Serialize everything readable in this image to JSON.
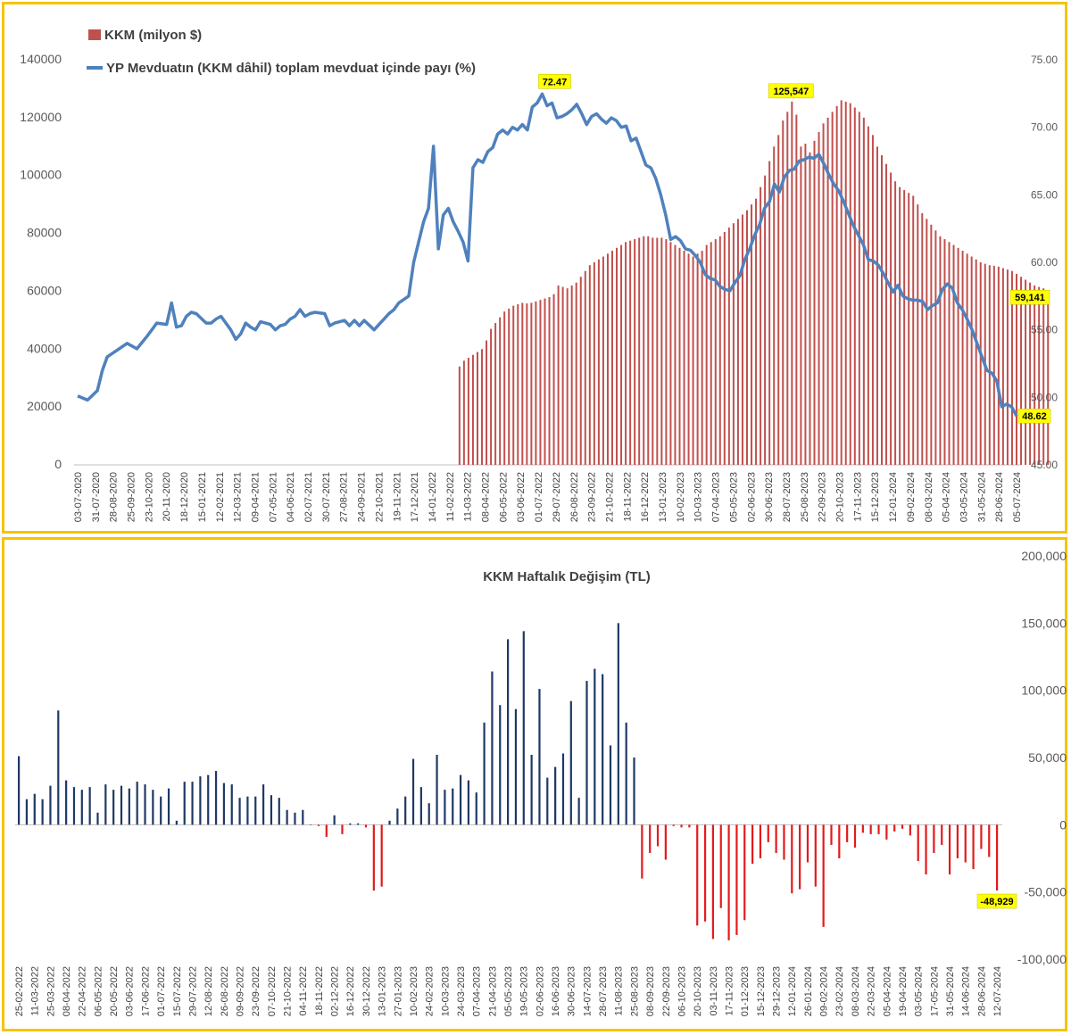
{
  "colors": {
    "frame": "#f5c400",
    "bar": "#c0504d",
    "line": "#4f81bd",
    "pos_bar": "#1f3864",
    "neg_bar": "#e31a1c",
    "callout": "#ffff00",
    "axis_text": "#595959"
  },
  "chart_data": [
    {
      "type": "bar+line",
      "title": "",
      "legend": {
        "placement": "top-left",
        "entries": [
          "KKM (milyon $)",
          "YP Mevduatın (KKM dâhil) toplam mevduat içinde payı (%)"
        ]
      },
      "y_left": {
        "ticks": [
          "0",
          "20000",
          "40000",
          "60000",
          "80000",
          "100000",
          "120000",
          "140000"
        ],
        "range": [
          0,
          140000
        ]
      },
      "y_right": {
        "ticks": [
          "45.00",
          "50.00",
          "55.00",
          "60.00",
          "65.00",
          "70.00",
          "75.00"
        ],
        "range": [
          45,
          75
        ]
      },
      "x_ticks": [
        "03-07-2020",
        "31-07-2020",
        "28-08-2020",
        "25-09-2020",
        "23-10-2020",
        "20-11-2020",
        "18-12-2020",
        "15-01-2021",
        "12-02-2021",
        "12-03-2021",
        "09-04-2021",
        "07-05-2021",
        "04-06-2021",
        "02-07-2021",
        "30-07-2021",
        "27-08-2021",
        "24-09-2021",
        "22-10-2021",
        "19-11-2021",
        "17-12-2021",
        "14-01-2022",
        "11-02-2022",
        "11-03-2022",
        "08-04-2022",
        "06-05-2022",
        "03-06-2022",
        "01-07-2022",
        "29-07-2022",
        "26-08-2022",
        "23-09-2022",
        "21-10-2022",
        "18-11-2022",
        "16-12-2022",
        "13-01-2023",
        "10-02-2023",
        "10-03-2023",
        "07-04-2023",
        "05-05-2023",
        "02-06-2023",
        "30-06-2023",
        "28-07-2023",
        "25-08-2023",
        "22-09-2023",
        "20-10-2023",
        "17-11-2023",
        "15-12-2023",
        "12-01-2024",
        "09-02-2024",
        "08-03-2024",
        "05-04-2024",
        "03-05-2024",
        "31-05-2024",
        "28-06-2024",
        "05-07-2024"
      ],
      "weeks_total": 210,
      "kkm_start_week": 85,
      "kkm_weekly_usd_mn": [
        34000,
        36000,
        37000,
        38000,
        39000,
        40000,
        43000,
        47000,
        49000,
        51000,
        53000,
        54000,
        55000,
        55500,
        56000,
        55800,
        56000,
        56500,
        57000,
        57500,
        58000,
        59000,
        62000,
        61500,
        61000,
        62000,
        63000,
        65000,
        67000,
        69000,
        70000,
        71000,
        72000,
        73000,
        74000,
        75000,
        76000,
        77000,
        77500,
        78000,
        78500,
        79000,
        79000,
        78500,
        78500,
        78500,
        78000,
        77000,
        76000,
        75000,
        74000,
        73000,
        72000,
        73000,
        74000,
        76000,
        77000,
        78000,
        79000,
        80500,
        82000,
        83500,
        85000,
        86500,
        88000,
        90000,
        92000,
        96000,
        100000,
        105000,
        110000,
        114000,
        119000,
        122000,
        125547,
        121000,
        110000,
        111000,
        108000,
        112000,
        115000,
        118000,
        120000,
        122000,
        124000,
        126000,
        125500,
        125000,
        123500,
        122000,
        120000,
        117000,
        114000,
        110000,
        107000,
        104000,
        101000,
        98000,
        96000,
        95000,
        94000,
        93000,
        90000,
        87000,
        85000,
        83000,
        81000,
        79000,
        78000,
        77000,
        76000,
        75000,
        74000,
        73000,
        72000,
        71000,
        70000,
        69500,
        69000,
        68800,
        68500,
        68000,
        67500,
        67000,
        66000,
        65000,
        64000,
        63000,
        62000,
        61500,
        61000,
        59141
      ],
      "fx_share_pct_points": [
        [
          0,
          50.1
        ],
        [
          2,
          49.8
        ],
        [
          4,
          50.5
        ],
        [
          5,
          52.0
        ],
        [
          6,
          53.0
        ],
        [
          8,
          53.5
        ],
        [
          10,
          54.0
        ],
        [
          12,
          53.6
        ],
        [
          14,
          54.5
        ],
        [
          15,
          55.0
        ],
        [
          16,
          55.5
        ],
        [
          18,
          55.4
        ],
        [
          19,
          57.0
        ],
        [
          20,
          55.2
        ],
        [
          21,
          55.3
        ],
        [
          22,
          56.0
        ],
        [
          23,
          56.3
        ],
        [
          24,
          56.2
        ],
        [
          26,
          55.5
        ],
        [
          27,
          55.5
        ],
        [
          28,
          55.8
        ],
        [
          29,
          56.0
        ],
        [
          31,
          55.0
        ],
        [
          32,
          54.3
        ],
        [
          33,
          54.7
        ],
        [
          34,
          55.5
        ],
        [
          35,
          55.2
        ],
        [
          36,
          55.0
        ],
        [
          37,
          55.6
        ],
        [
          39,
          55.4
        ],
        [
          40,
          55.0
        ],
        [
          41,
          55.3
        ],
        [
          42,
          55.4
        ],
        [
          43,
          55.8
        ],
        [
          44,
          56.0
        ],
        [
          45,
          56.5
        ],
        [
          46,
          56.0
        ],
        [
          47,
          56.2
        ],
        [
          48,
          56.3
        ],
        [
          50,
          56.2
        ],
        [
          51,
          55.3
        ],
        [
          52,
          55.5
        ],
        [
          54,
          55.7
        ],
        [
          55,
          55.3
        ],
        [
          56,
          55.7
        ],
        [
          57,
          55.3
        ],
        [
          58,
          55.7
        ],
        [
          60,
          55.0
        ],
        [
          61,
          55.4
        ],
        [
          62,
          55.8
        ],
        [
          63,
          56.2
        ],
        [
          64,
          56.5
        ],
        [
          65,
          57.0
        ],
        [
          67,
          57.5
        ],
        [
          68,
          60.0
        ],
        [
          70,
          63.0
        ],
        [
          71,
          64.0
        ],
        [
          72,
          68.6
        ],
        [
          73,
          61.0
        ],
        [
          74,
          63.5
        ],
        [
          75,
          64.0
        ],
        [
          76,
          63.0
        ],
        [
          77,
          62.3
        ],
        [
          78,
          61.5
        ],
        [
          79,
          60.1
        ],
        [
          80,
          67.0
        ],
        [
          81,
          67.6
        ],
        [
          82,
          67.4
        ],
        [
          83,
          68.2
        ],
        [
          84,
          68.5
        ],
        [
          85,
          69.5
        ],
        [
          86,
          69.8
        ],
        [
          87,
          69.5
        ],
        [
          88,
          70.0
        ],
        [
          89,
          69.8
        ],
        [
          90,
          70.2
        ],
        [
          91,
          69.8
        ],
        [
          92,
          71.5
        ],
        [
          93,
          71.8
        ],
        [
          94,
          72.47
        ],
        [
          95,
          71.6
        ],
        [
          96,
          71.8
        ],
        [
          97,
          70.7
        ],
        [
          98,
          70.8
        ],
        [
          99,
          71.0
        ],
        [
          100,
          71.3
        ],
        [
          101,
          71.7
        ],
        [
          102,
          71.0
        ],
        [
          103,
          70.2
        ],
        [
          104,
          70.8
        ],
        [
          105,
          71.0
        ],
        [
          106,
          70.6
        ],
        [
          107,
          70.3
        ],
        [
          108,
          70.7
        ],
        [
          109,
          70.5
        ],
        [
          110,
          70.0
        ],
        [
          111,
          70.1
        ],
        [
          112,
          69.0
        ],
        [
          113,
          69.2
        ],
        [
          115,
          67.2
        ],
        [
          116,
          67.0
        ],
        [
          117,
          66.2
        ],
        [
          118,
          65.0
        ],
        [
          119,
          63.5
        ],
        [
          120,
          61.7
        ],
        [
          121,
          61.9
        ],
        [
          122,
          61.6
        ],
        [
          123,
          61.0
        ],
        [
          124,
          60.9
        ],
        [
          125,
          60.5
        ],
        [
          126,
          60.0
        ],
        [
          127,
          59.1
        ],
        [
          128,
          58.8
        ],
        [
          129,
          58.7
        ],
        [
          130,
          58.2
        ],
        [
          131,
          58.0
        ],
        [
          132,
          57.9
        ],
        [
          133,
          58.5
        ],
        [
          134,
          59.0
        ],
        [
          135,
          60.2
        ],
        [
          136,
          61.0
        ],
        [
          137,
          62.0
        ],
        [
          138,
          62.8
        ],
        [
          139,
          64.0
        ],
        [
          140,
          64.5
        ],
        [
          141,
          65.8
        ],
        [
          142,
          65.2
        ],
        [
          143,
          66.3
        ],
        [
          144,
          66.8
        ],
        [
          145,
          66.9
        ],
        [
          146,
          67.5
        ],
        [
          147,
          67.6
        ],
        [
          148,
          67.8
        ],
        [
          149,
          67.7
        ],
        [
          150,
          68.0
        ],
        [
          151,
          67.3
        ],
        [
          152,
          66.5
        ],
        [
          153,
          65.8
        ],
        [
          154,
          65.3
        ],
        [
          155,
          64.5
        ],
        [
          156,
          63.6
        ],
        [
          157,
          62.7
        ],
        [
          158,
          62.0
        ],
        [
          159,
          61.3
        ],
        [
          160,
          60.2
        ],
        [
          161,
          60.1
        ],
        [
          162,
          59.8
        ],
        [
          163,
          59.2
        ],
        [
          164,
          58.5
        ],
        [
          165,
          57.8
        ],
        [
          166,
          58.3
        ],
        [
          167,
          57.5
        ],
        [
          168,
          57.3
        ],
        [
          169,
          57.2
        ],
        [
          170,
          57.2
        ],
        [
          171,
          57.1
        ],
        [
          172,
          56.5
        ],
        [
          173,
          56.8
        ],
        [
          174,
          57.0
        ],
        [
          175,
          58.0
        ],
        [
          176,
          58.4
        ],
        [
          177,
          58.1
        ],
        [
          178,
          57.0
        ],
        [
          179,
          56.5
        ],
        [
          180,
          55.8
        ],
        [
          181,
          55.0
        ],
        [
          182,
          54.0
        ],
        [
          183,
          53.0
        ],
        [
          184,
          52.0
        ],
        [
          185,
          51.8
        ],
        [
          186,
          51.2
        ],
        [
          187,
          49.3
        ],
        [
          188,
          49.5
        ],
        [
          189,
          49.3
        ],
        [
          190,
          48.62
        ]
      ],
      "callouts": [
        {
          "text": "72.47",
          "series": "fx_share"
        },
        {
          "text": "125,547",
          "series": "kkm"
        },
        {
          "text": "59,141",
          "series": "kkm"
        },
        {
          "text": "48.62",
          "series": "fx_share"
        }
      ]
    },
    {
      "type": "bar",
      "title": "KKM Haftalık Değişim (TL)",
      "y_right": {
        "ticks": [
          "-100,000",
          "-50,000",
          "0",
          "50,000",
          "100,000",
          "150,000",
          "200,000"
        ],
        "range": [
          -100000,
          200000
        ]
      },
      "x_ticks": [
        "25-02-2022",
        "11-03-2022",
        "25-03-2022",
        "08-04-2022",
        "22-04-2022",
        "06-05-2022",
        "20-05-2022",
        "03-06-2022",
        "17-06-2022",
        "01-07-2022",
        "15-07-2022",
        "29-07-2022",
        "12-08-2022",
        "26-08-2022",
        "09-09-2022",
        "23-09-2022",
        "07-10-2022",
        "21-10-2022",
        "04-11-2022",
        "18-11-2022",
        "02-12-2022",
        "16-12-2022",
        "30-12-2022",
        "13-01-2023",
        "27-01-2023",
        "10-02-2023",
        "24-02-2023",
        "10-03-2023",
        "24-03-2023",
        "07-04-2023",
        "21-04-2023",
        "05-05-2023",
        "19-05-2023",
        "02-06-2023",
        "16-06-2023",
        "30-06-2023",
        "14-07-2023",
        "28-07-2023",
        "11-08-2023",
        "25-08-2023",
        "08-09-2023",
        "22-09-2023",
        "06-10-2023",
        "20-10-2023",
        "03-11-2023",
        "17-11-2023",
        "01-12-2023",
        "15-12-2023",
        "29-12-2023",
        "12-01-2024",
        "26-01-2024",
        "09-02-2024",
        "23-02-2024",
        "08-03-2024",
        "22-03-2024",
        "05-04-2024",
        "19-04-2024",
        "03-05-2024",
        "17-05-2024",
        "31-05-2024",
        "14-06-2024",
        "28-06-2024",
        "12-07-2024"
      ],
      "values": [
        51000,
        19000,
        23000,
        19000,
        29000,
        85000,
        33000,
        28000,
        26000,
        28000,
        9000,
        30000,
        26000,
        29000,
        27000,
        32000,
        30000,
        26000,
        21000,
        27000,
        3000,
        32000,
        32000,
        36000,
        37000,
        40000,
        31000,
        30000,
        20000,
        21000,
        21000,
        30000,
        22000,
        20000,
        11000,
        9000,
        11000,
        0,
        -1000,
        -9000,
        7000,
        -7000,
        1000,
        1000,
        -2000,
        -49000,
        -46000,
        3000,
        12000,
        21000,
        49000,
        28000,
        16000,
        52000,
        26000,
        27000,
        37000,
        33000,
        24000,
        76000,
        114000,
        89000,
        138000,
        86000,
        144000,
        52000,
        101000,
        35000,
        43000,
        53000,
        92000,
        20000,
        107000,
        116000,
        112000,
        59000,
        150000,
        76000,
        50000,
        -40000,
        -21000,
        -16000,
        -26000,
        -1000,
        -2000,
        -2000,
        -75000,
        -72000,
        -85000,
        -62000,
        -86000,
        -82000,
        -71000,
        -29000,
        -25000,
        -13000,
        -21000,
        -26000,
        -51000,
        -48000,
        -28000,
        -46000,
        -76000,
        -15000,
        -25000,
        -13000,
        -17000,
        -6000,
        -7000,
        -7000,
        -11000,
        -5000,
        -3000,
        -8000,
        -27000,
        -37000,
        -21000,
        -15000,
        -37000,
        -25000,
        -28000,
        -33000,
        -18000,
        -24000,
        -48929
      ],
      "callouts": [
        {
          "text": "-48,929"
        }
      ]
    }
  ]
}
